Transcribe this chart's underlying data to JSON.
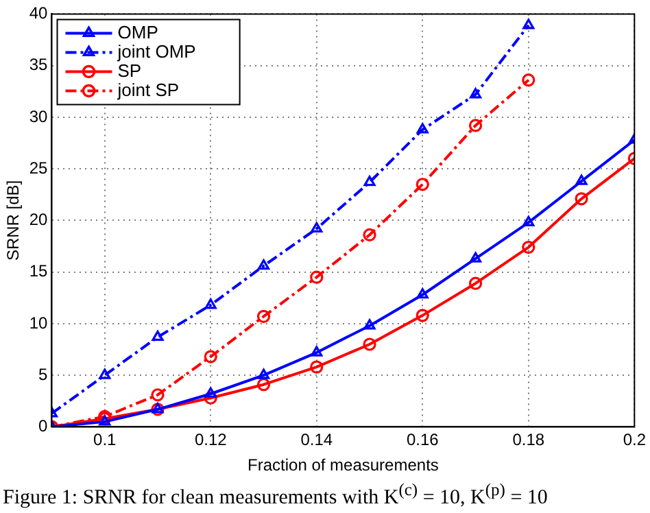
{
  "chart_data": {
    "type": "line",
    "xlabel": "Fraction of measurements",
    "ylabel": "SRNR [dB]",
    "x": [
      0.09,
      0.1,
      0.11,
      0.12,
      0.13,
      0.14,
      0.15,
      0.16,
      0.17,
      0.18,
      0.19,
      0.2
    ],
    "xlim": [
      0.09,
      0.2
    ],
    "xticks": [
      0.1,
      0.12,
      0.14,
      0.16,
      0.18,
      0.2
    ],
    "ylim": [
      0,
      40
    ],
    "yticks": [
      0,
      5,
      10,
      15,
      20,
      25,
      30,
      35,
      40
    ],
    "grid": true,
    "legend": "top left",
    "annotations": [
      "Figure 1: SRNR for clean measurements with K$^{(c)}$ = 10, K$^{(p)}$ = 10"
    ],
    "series": [
      {
        "name": "OMP",
        "color": "#0000ff",
        "marker": "triangle",
        "line_style": "solid",
        "values": [
          0,
          0.5,
          1.7,
          3.2,
          5,
          7.2,
          9.8,
          12.8,
          16.3,
          19.8,
          23.8,
          27.8
        ]
      },
      {
        "name": "joint OMP",
        "color": "#0000ff",
        "marker": "triangle",
        "line_style": "dashed",
        "values": [
          1.3,
          5,
          8.7,
          11.8,
          15.6,
          19.2,
          23.7,
          28.8,
          32.2,
          38.9,
          null,
          null
        ]
      },
      {
        "name": "SP",
        "color": "#ff0000",
        "marker": "circle",
        "line_style": "solid",
        "values": [
          0,
          0.8,
          1.7,
          2.8,
          4.1,
          5.8,
          8,
          10.8,
          13.9,
          17.4,
          22.1,
          26
        ]
      },
      {
        "name": "joint SP",
        "color": "#ff0000",
        "marker": "circle",
        "line_style": "dashed",
        "values": [
          0,
          1,
          3.1,
          6.8,
          10.7,
          14.5,
          18.6,
          23.5,
          29.2,
          33.6,
          null,
          null
        ]
      }
    ]
  }
}
